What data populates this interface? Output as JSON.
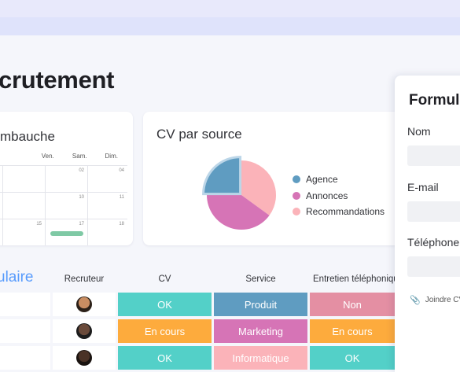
{
  "page": {
    "title": "crutement"
  },
  "calendar": {
    "title": "mbauche",
    "days": [
      "",
      "Ven.",
      "Sam.",
      "Dim."
    ],
    "weeks": [
      [
        "",
        "",
        "02",
        "04"
      ],
      [
        "",
        "",
        "10",
        "11"
      ],
      [
        "",
        "15",
        "17",
        "18"
      ]
    ]
  },
  "pie": {
    "title": "CV par source",
    "legend": [
      {
        "label": "Agence",
        "color": "#5f9cc1"
      },
      {
        "label": "Annonces",
        "color": "#d674b6"
      },
      {
        "label": "Recommandations",
        "color": "#fbb3b9"
      }
    ]
  },
  "chart_data": {
    "type": "pie",
    "title": "CV par source",
    "categories": [
      "Agence",
      "Annonces",
      "Recommandations"
    ],
    "values": [
      25,
      40,
      35
    ]
  },
  "table": {
    "title": "ulaire",
    "headers": {
      "recruteur": "Recruteur",
      "cv": "CV",
      "service": "Service",
      "entretien": "Entretien téléphonique"
    },
    "rows": [
      {
        "cv": "OK",
        "cv_color": "#53d0c8",
        "service": "Produit",
        "service_color": "#5f9cc1",
        "entretien": "Non",
        "entretien_color": "#e48fa3",
        "avatar_color": "#a9744f"
      },
      {
        "cv": "En cours",
        "cv_color": "#fdab3d",
        "service": "Marketing",
        "service_color": "#d674b6",
        "entretien": "En cours",
        "entretien_color": "#fdab3d",
        "avatar_color": "#4a3a32"
      },
      {
        "cv": "OK",
        "cv_color": "#53d0c8",
        "service": "Informatique",
        "service_color": "#fbb3b9",
        "entretien": "OK",
        "entretien_color": "#53d0c8",
        "avatar_color": "#3b2a22"
      }
    ]
  },
  "form": {
    "title": "Formul",
    "fields": [
      {
        "label": "Nom"
      },
      {
        "label": "E-mail"
      },
      {
        "label": "Téléphone"
      }
    ],
    "attach_label": "Joindre CV",
    "attach_icon": "paperclip-icon"
  }
}
